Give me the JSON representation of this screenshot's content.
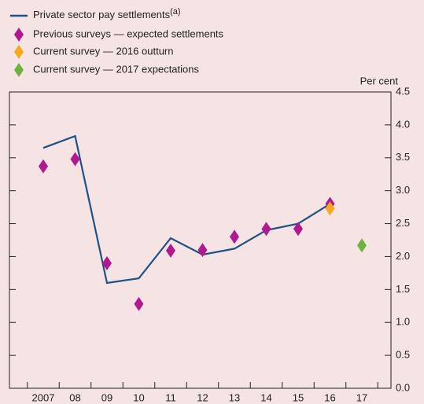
{
  "chart_data": {
    "type": "line",
    "unit_label": "Per cent",
    "categories": [
      "2007",
      "08",
      "09",
      "10",
      "11",
      "12",
      "13",
      "14",
      "15",
      "16",
      "17"
    ],
    "series": [
      {
        "name": "Private sector pay settlements",
        "name_note": "(a)",
        "mark": "line",
        "color": "#1d5286",
        "values": [
          3.65,
          3.83,
          1.6,
          1.67,
          2.28,
          2.03,
          2.12,
          2.4,
          2.5,
          2.8,
          null
        ]
      },
      {
        "name": "Previous surveys — expected settlements",
        "mark": "diamond",
        "color": "#b01a8e",
        "values": [
          3.37,
          3.48,
          1.9,
          1.28,
          2.09,
          2.1,
          2.3,
          2.42,
          2.42,
          2.8,
          null
        ]
      },
      {
        "name": "Current survey — 2016 outturn",
        "mark": "diamond",
        "color": "#f7a81b",
        "values": [
          null,
          null,
          null,
          null,
          null,
          null,
          null,
          null,
          null,
          2.73,
          null
        ]
      },
      {
        "name": "Current survey — 2017 expectations",
        "mark": "diamond",
        "color": "#6db33f",
        "values": [
          null,
          null,
          null,
          null,
          null,
          null,
          null,
          null,
          null,
          null,
          2.17
        ]
      }
    ],
    "ylim": [
      0,
      4.5
    ],
    "yticks": [
      {
        "value": 0,
        "label": "0.0"
      },
      0.5,
      {
        "value": 1,
        "label": "1.0"
      },
      1.5,
      {
        "value": 2,
        "label": "2.0"
      },
      2.5,
      {
        "value": 3,
        "label": "3.0"
      },
      3.5,
      {
        "value": 4,
        "label": "4.0"
      },
      4.5
    ]
  }
}
